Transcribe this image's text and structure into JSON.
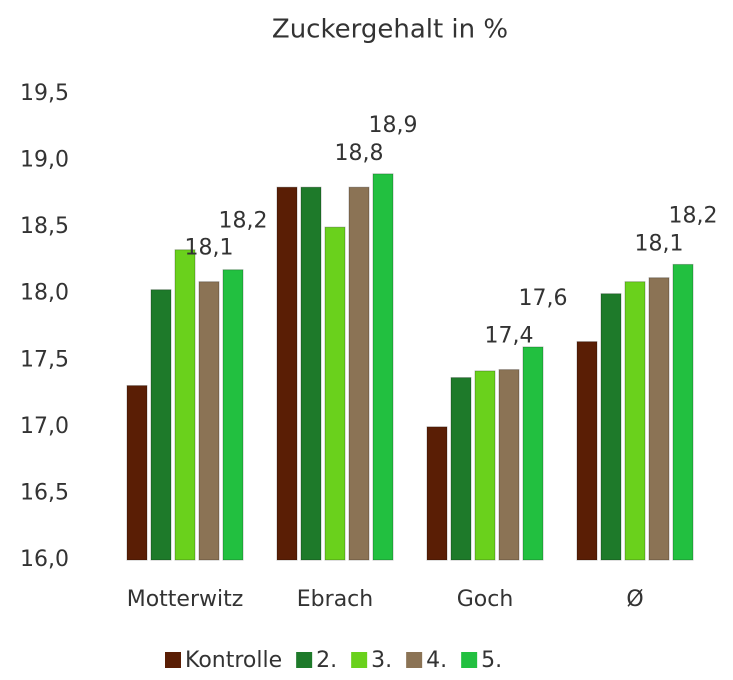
{
  "chart_data": {
    "type": "bar",
    "title": "Zuckergehalt in %",
    "categories": [
      "Motterwitz",
      "Ebrach",
      "Goch",
      "Ø"
    ],
    "series": [
      {
        "name": "Kontrolle",
        "color": "#5a1e05",
        "values": [
          17.31,
          18.8,
          17.0,
          17.64
        ]
      },
      {
        "name": "2.",
        "color": "#1e7a2a",
        "values": [
          18.03,
          18.8,
          17.37,
          18.0
        ]
      },
      {
        "name": "3.",
        "color": "#6ad11c",
        "values": [
          18.33,
          18.5,
          17.42,
          18.09
        ]
      },
      {
        "name": "4.",
        "color": "#8b7355",
        "values": [
          18.09,
          18.8,
          17.43,
          18.12
        ],
        "value_labels": [
          "18,1",
          "18,8",
          "17,4",
          "18,1"
        ]
      },
      {
        "name": "5.",
        "color": "#22c040",
        "values": [
          18.18,
          18.9,
          17.6,
          18.22
        ],
        "value_labels": [
          "18,2",
          "18,9",
          "17,6",
          "18,2"
        ]
      }
    ],
    "ylim": [
      16.0,
      19.5
    ],
    "yticks": [
      {
        "value": 16.0,
        "label": "16,0"
      },
      {
        "value": 16.5,
        "label": "16,5"
      },
      {
        "value": 17.0,
        "label": "17,0"
      },
      {
        "value": 17.5,
        "label": "17,5"
      },
      {
        "value": 18.0,
        "label": "18,0"
      },
      {
        "value": 18.5,
        "label": "18,5"
      },
      {
        "value": 19.0,
        "label": "19,0"
      },
      {
        "value": 19.5,
        "label": "19,5"
      }
    ],
    "grid": false,
    "legend": "bottom"
  }
}
